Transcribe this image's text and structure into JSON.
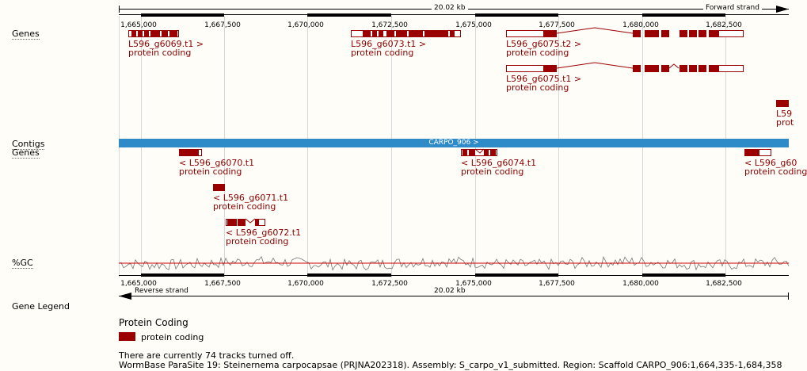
{
  "top_ruler": {
    "length_label": "20.02 kb",
    "strand_label": "Forward strand",
    "ticks": [
      "1,665,000",
      "1,667,500",
      "1,670,000",
      "1,672,500",
      "1,675,000",
      "1,677,500",
      "1,680,000",
      "1,682,500"
    ]
  },
  "bottom_ruler": {
    "length_label": "20.02 kb",
    "strand_label": "Reverse strand",
    "ticks": [
      "1,665,000",
      "1,667,500",
      "1,670,000",
      "1,672,500",
      "1,675,000",
      "1,677,500",
      "1,680,000",
      "1,682,500"
    ]
  },
  "tracks": {
    "genes_forward": "Genes",
    "contigs": "Contigs",
    "genes_reverse": "Genes",
    "gc": "%GC",
    "legend": "Gene Legend"
  },
  "contig": {
    "label": "CARPO_906 >"
  },
  "forward_genes": [
    {
      "name": "L596_g6069.t1 >",
      "biotype": "protein coding"
    },
    {
      "name": "L596_g6073.t1 >",
      "biotype": "protein coding"
    },
    {
      "name": "L596_g6075.t2 >",
      "biotype": "protein coding"
    },
    {
      "name": "L596_g6075.t1 >",
      "biotype": "protein coding"
    },
    {
      "name": "L59",
      "biotype": "prot"
    }
  ],
  "reverse_genes": [
    {
      "name": "< L596_g6070.t1",
      "biotype": "protein coding"
    },
    {
      "name": "< L596_g6071.t1",
      "biotype": "protein coding"
    },
    {
      "name": "< L596_g6072.t1",
      "biotype": "protein coding"
    },
    {
      "name": "< L596_g6074.t1",
      "biotype": "protein coding"
    },
    {
      "name": "< L596_g60",
      "biotype": "protein coding"
    }
  ],
  "legend": {
    "section_title": "Protein Coding",
    "item_label": "protein coding",
    "item_color": "#9b0000"
  },
  "footer": {
    "tracks_off": "There are currently 74 tracks turned off.",
    "info": "WormBase ParaSite 19: Steinernema carpocapsae (PRJNA202318). Assembly: S_carpo_v1_submitted. Region: Scaffold CARPO_906:1,664,335-1,684,358"
  },
  "colors": {
    "exon": "#9b0000",
    "contig": "#2e8bc8",
    "gc_line": "#cc0000"
  }
}
